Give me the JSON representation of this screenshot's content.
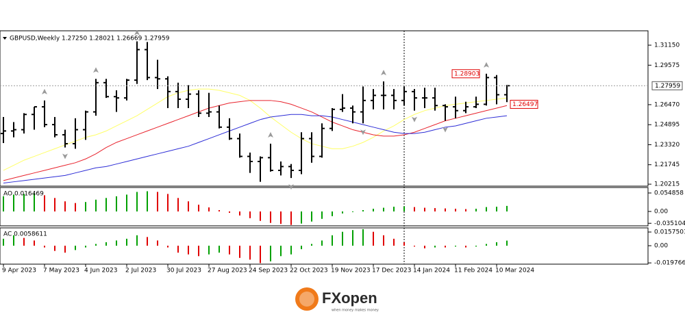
{
  "chart_data": [
    {
      "type": "ohlc",
      "title": "GBPUSD,Weekly  1.27250 1.28021 1.26669 1.27959",
      "categories": [
        "9 Apr 2023",
        null,
        null,
        null,
        "7 May 2023",
        null,
        null,
        null,
        "4 Jun 2023",
        null,
        null,
        null,
        "2 Jul 2023",
        null,
        null,
        null,
        "30 Jul 2023",
        null,
        null,
        null,
        "27 Aug 2023",
        null,
        null,
        null,
        "24 Sep 2023",
        null,
        null,
        null,
        "22 Oct 2023",
        null,
        null,
        null,
        "19 Nov 2023",
        null,
        null,
        null,
        "17 Dec 2023",
        null,
        null,
        null,
        "14 Jan 2024",
        null,
        null,
        null,
        "11 Feb 2024",
        null,
        null,
        null,
        "10 Mar 2024",
        null
      ],
      "open": [
        1.242,
        1.244,
        1.245,
        1.257,
        1.263,
        1.249,
        1.241,
        1.234,
        1.245,
        1.259,
        1.282,
        1.271,
        1.27,
        1.284,
        1.308,
        1.286,
        1.285,
        1.275,
        1.269,
        1.273,
        1.258,
        1.259,
        1.247,
        1.238,
        1.224,
        1.22,
        1.223,
        1.213,
        1.216,
        1.213,
        1.238,
        1.224,
        1.246,
        1.261,
        1.262,
        1.259,
        1.268,
        1.272,
        1.272,
        1.268,
        1.275,
        1.27,
        1.27,
        1.264,
        1.263,
        1.26,
        1.263,
        1.265,
        1.286,
        1.2725
      ],
      "high": [
        1.255,
        1.251,
        1.258,
        1.263,
        1.268,
        1.255,
        1.245,
        1.254,
        1.26,
        1.285,
        1.285,
        1.276,
        1.285,
        1.3145,
        1.314,
        1.3,
        1.287,
        1.282,
        1.28,
        1.276,
        1.274,
        1.264,
        1.254,
        1.242,
        1.227,
        1.224,
        1.234,
        1.22,
        1.218,
        1.243,
        1.243,
        1.25,
        1.262,
        1.273,
        1.264,
        1.279,
        1.277,
        1.283,
        1.277,
        1.279,
        1.277,
        1.278,
        1.278,
        1.265,
        1.271,
        1.267,
        1.271,
        1.28903,
        1.288,
        1.28021
      ],
      "low": [
        1.2345,
        1.239,
        1.242,
        1.245,
        1.247,
        1.239,
        1.231,
        1.23,
        1.237,
        1.256,
        1.27,
        1.259,
        1.268,
        1.281,
        1.284,
        1.277,
        1.262,
        1.262,
        1.262,
        1.255,
        1.255,
        1.246,
        1.237,
        1.223,
        1.211,
        1.204,
        1.212,
        1.209,
        1.207,
        1.21,
        1.219,
        1.223,
        1.244,
        1.259,
        1.25,
        1.25,
        1.261,
        1.261,
        1.261,
        1.264,
        1.26,
        1.262,
        1.26,
        1.252,
        1.254,
        1.258,
        1.262,
        1.264,
        1.26497,
        1.26669
      ],
      "close": [
        1.244,
        1.245,
        1.257,
        1.263,
        1.249,
        1.241,
        1.234,
        1.245,
        1.259,
        1.282,
        1.271,
        1.27,
        1.284,
        1.308,
        1.286,
        1.285,
        1.275,
        1.269,
        1.273,
        1.258,
        1.259,
        1.247,
        1.238,
        1.224,
        1.22,
        1.223,
        1.213,
        1.216,
        1.213,
        1.238,
        1.224,
        1.246,
        1.261,
        1.262,
        1.259,
        1.268,
        1.272,
        1.272,
        1.268,
        1.275,
        1.27,
        1.27,
        1.264,
        1.263,
        1.26,
        1.263,
        1.265,
        1.286,
        1.2725,
        1.27959
      ],
      "color": "#000000",
      "overlays": [
        {
          "color": "#ffff66",
          "values": [
            1.213,
            1.217,
            1.221,
            1.224,
            1.227,
            1.23,
            1.233,
            1.236,
            1.239,
            1.241,
            1.244,
            1.248,
            1.252,
            1.256,
            1.261,
            1.266,
            1.271,
            1.274,
            1.276,
            1.277,
            1.277,
            1.276,
            1.274,
            1.272,
            1.268,
            1.262,
            1.255,
            1.249,
            1.243,
            1.238,
            1.234,
            1.232,
            1.23,
            1.23,
            1.232,
            1.235,
            1.239,
            1.244,
            1.248,
            1.253,
            1.257,
            1.26,
            1.262,
            1.264,
            1.265,
            1.266,
            1.267,
            1.268,
            1.269,
            1.27
          ]
        },
        {
          "color": "#e8212b",
          "values": [
            1.205,
            1.207,
            1.209,
            1.211,
            1.213,
            1.215,
            1.217,
            1.219,
            1.222,
            1.226,
            1.231,
            1.235,
            1.238,
            1.241,
            1.244,
            1.247,
            1.25,
            1.253,
            1.256,
            1.259,
            1.262,
            1.264,
            1.266,
            1.267,
            1.268,
            1.268,
            1.268,
            1.267,
            1.265,
            1.262,
            1.259,
            1.255,
            1.251,
            1.248,
            1.245,
            1.243,
            1.241,
            1.24,
            1.24,
            1.241,
            1.243,
            1.246,
            1.249,
            1.252,
            1.254,
            1.256,
            1.258,
            1.26,
            1.262,
            1.264
          ]
        },
        {
          "color": "#2b2bd6",
          "values": [
            1.203,
            1.204,
            1.205,
            1.206,
            1.207,
            1.208,
            1.209,
            1.211,
            1.213,
            1.215,
            1.216,
            1.218,
            1.22,
            1.222,
            1.224,
            1.226,
            1.228,
            1.23,
            1.232,
            1.235,
            1.238,
            1.241,
            1.244,
            1.247,
            1.25,
            1.253,
            1.255,
            1.256,
            1.257,
            1.257,
            1.256,
            1.256,
            1.255,
            1.253,
            1.251,
            1.249,
            1.247,
            1.245,
            1.243,
            1.242,
            1.242,
            1.243,
            1.245,
            1.247,
            1.248,
            1.25,
            1.252,
            1.254,
            1.255,
            1.256
          ]
        }
      ],
      "fractals": {
        "up": [
          4,
          9,
          13,
          26,
          37,
          47
        ],
        "down": [
          6,
          28,
          35,
          40,
          43
        ],
        "color": "#9a9a9a"
      },
      "ylim": [
        1.2006,
        1.3212
      ],
      "yticks": [
        {
          "value": 1.3115,
          "label": "1.31150"
        },
        {
          "value": 1.29575,
          "label": "1.29575"
        },
        {
          "value": 1.2647,
          "label": "1.26470"
        },
        {
          "value": 1.24895,
          "label": "1.24895"
        },
        {
          "value": 1.2332,
          "label": "1.23320"
        },
        {
          "value": 1.21745,
          "label": "1.21745"
        },
        {
          "value": 1.20215,
          "label": "1.20215"
        }
      ]
    },
    {
      "type": "bar",
      "label": "AO 0.016469",
      "up_color": "#00a000",
      "down_color": "#e00000",
      "values": [
        0.045,
        0.05,
        0.052,
        0.054,
        0.048,
        0.04,
        0.03,
        0.025,
        0.028,
        0.035,
        0.04,
        0.045,
        0.05,
        0.058,
        0.06,
        0.058,
        0.052,
        0.04,
        0.03,
        0.02,
        0.012,
        0.004,
        -0.004,
        -0.012,
        -0.02,
        -0.028,
        -0.034,
        -0.037,
        -0.04,
        -0.036,
        -0.03,
        -0.022,
        -0.014,
        -0.006,
        -0.002,
        0.004,
        0.008,
        0.011,
        0.014,
        0.015,
        0.013,
        0.011,
        0.01,
        0.009,
        0.008,
        0.007,
        0.008,
        0.013,
        0.014,
        0.016469
      ],
      "ylim": [
        -0.0427,
        0.0711
      ],
      "yticks": [
        0.054858,
        {
          "value": 0,
          "label": "0.00"
        },
        -0.035104
      ]
    },
    {
      "type": "bar",
      "label": "AC 0.0058611",
      "up_color": "#00a000",
      "down_color": "#e00000",
      "values": [
        0.008,
        0.012,
        0.009,
        0.006,
        -0.002,
        -0.006,
        -0.008,
        -0.005,
        -0.002,
        0.002,
        0.004,
        0.006,
        0.008,
        0.012,
        0.01,
        0.006,
        -0.002,
        -0.008,
        -0.01,
        -0.012,
        -0.01,
        -0.008,
        -0.01,
        -0.014,
        -0.016,
        -0.02,
        -0.018,
        -0.012,
        -0.01,
        -0.004,
        0.002,
        0.006,
        0.012,
        0.016,
        0.018,
        0.019,
        0.016,
        0.012,
        0.008,
        0.004,
        -0.001,
        -0.003,
        -0.002,
        -0.002,
        -0.001,
        -0.002,
        -0.001,
        0.002,
        0.004,
        0.0058611
      ],
      "ylim": [
        -0.0212,
        0.0205
      ],
      "yticks": [
        0.0157503,
        {
          "value": 0,
          "label": "0.00"
        },
        -0.019766
      ]
    }
  ],
  "logo": {
    "text": "FXopen",
    "tagline": "when money makes money"
  }
}
